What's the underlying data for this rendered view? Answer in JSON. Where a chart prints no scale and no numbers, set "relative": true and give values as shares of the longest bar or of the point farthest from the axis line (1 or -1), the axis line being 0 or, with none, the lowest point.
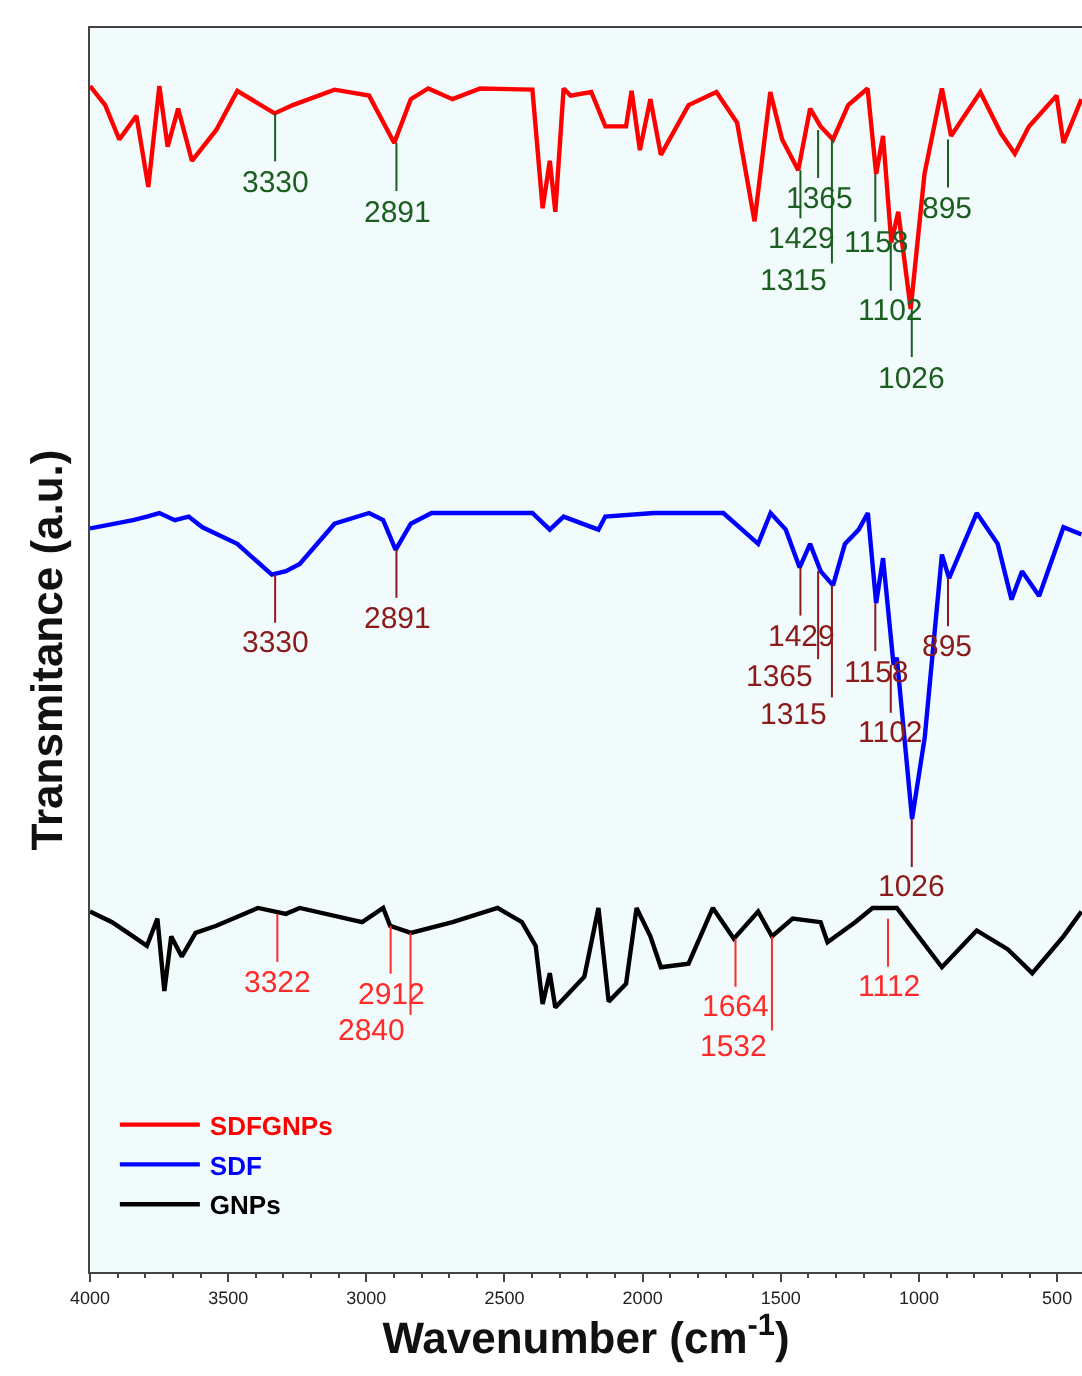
{
  "chart_data": {
    "type": "line",
    "relative": true,
    "xlabel": "Wavenumber (cm$^{-1}$)",
    "ylabel": "Transmitance (a.u.)",
    "xlim": [
      4000,
      410
    ],
    "xticks": [
      4000,
      3500,
      3000,
      2500,
      2000,
      1500,
      1000,
      500
    ],
    "grid": false,
    "legend": "bottom left",
    "tick_labels": "x",
    "marker": "none",
    "line_style": "solid",
    "series": [
      {
        "name": "SDFGNPs",
        "color": "#ff0000",
        "x": [
          4000,
          3945,
          3894,
          3832,
          3789,
          3749,
          3719,
          3681,
          3631,
          3543,
          3467,
          3332,
          3266,
          3115,
          2990,
          2899,
          2839,
          2776,
          2688,
          2588,
          2399,
          2362,
          2336,
          2316,
          2286,
          2261,
          2186,
          2135,
          2060,
          2040,
          2010,
          1972,
          1934,
          1834,
          1733,
          1658,
          1595,
          1538,
          1495,
          1437,
          1394,
          1356,
          1311,
          1256,
          1186,
          1155,
          1130,
          1100,
          1075,
          1030,
          980,
          917,
          884,
          778,
          703,
          653,
          602,
          502,
          477,
          412
        ],
        "values": [
          1.0,
          0.984,
          0.955,
          0.975,
          0.915,
          1.0,
          0.949,
          0.981,
          0.937,
          0.963,
          0.996,
          0.977,
          0.984,
          0.997,
          0.992,
          0.952,
          0.989,
          0.998,
          0.989,
          0.998,
          0.997,
          0.897,
          0.937,
          0.894,
          0.998,
          0.992,
          0.995,
          0.966,
          0.966,
          0.996,
          0.946,
          0.989,
          0.942,
          0.984,
          0.995,
          0.969,
          0.886,
          0.995,
          0.955,
          0.929,
          0.981,
          0.966,
          0.955,
          0.984,
          0.998,
          0.926,
          0.958,
          0.868,
          0.894,
          0.812,
          0.926,
          0.998,
          0.958,
          0.995,
          0.96,
          0.943,
          0.966,
          0.992,
          0.952,
          0.989
        ]
      },
      {
        "name": "SDF",
        "color": "#0000ff",
        "x": [
          4000,
          3844,
          3794,
          3749,
          3693,
          3643,
          3593,
          3467,
          3342,
          3291,
          3241,
          3115,
          2990,
          2939,
          2894,
          2839,
          2764,
          2399,
          2336,
          2286,
          2160,
          2135,
          1959,
          1708,
          1582,
          1537,
          1482,
          1432,
          1394,
          1356,
          1311,
          1268,
          1218,
          1185,
          1155,
          1130,
          1092,
          1080,
          1025,
          979,
          917,
          891,
          791,
          715,
          665,
          627,
          565,
          477,
          412
        ],
        "values": [
          0.627,
          0.634,
          0.637,
          0.64,
          0.634,
          0.637,
          0.628,
          0.614,
          0.588,
          0.591,
          0.597,
          0.631,
          0.64,
          0.634,
          0.609,
          0.631,
          0.64,
          0.64,
          0.626,
          0.637,
          0.626,
          0.637,
          0.64,
          0.64,
          0.614,
          0.64,
          0.626,
          0.594,
          0.614,
          0.591,
          0.579,
          0.614,
          0.626,
          0.64,
          0.564,
          0.602,
          0.512,
          0.518,
          0.382,
          0.451,
          0.605,
          0.585,
          0.64,
          0.614,
          0.567,
          0.591,
          0.57,
          0.628,
          0.622
        ]
      },
      {
        "name": "GNPs",
        "color": "#000000",
        "x": [
          4000,
          3920,
          3844,
          3794,
          3756,
          3731,
          3706,
          3668,
          3618,
          3543,
          3392,
          3291,
          3241,
          3015,
          2939,
          2914,
          2839,
          2688,
          2525,
          2437,
          2387,
          2362,
          2336,
          2316,
          2211,
          2160,
          2123,
          2060,
          2022,
          1972,
          1934,
          1834,
          1746,
          1670,
          1582,
          1532,
          1457,
          1356,
          1331,
          1231,
          1168,
          1080,
          917,
          791,
          678,
          590,
          477,
          412
        ],
        "values": [
          0.304,
          0.295,
          0.283,
          0.275,
          0.298,
          0.237,
          0.283,
          0.266,
          0.286,
          0.292,
          0.307,
          0.302,
          0.307,
          0.295,
          0.307,
          0.292,
          0.286,
          0.295,
          0.307,
          0.295,
          0.275,
          0.226,
          0.252,
          0.223,
          0.249,
          0.307,
          0.228,
          0.243,
          0.307,
          0.283,
          0.257,
          0.26,
          0.307,
          0.281,
          0.304,
          0.283,
          0.298,
          0.295,
          0.278,
          0.295,
          0.307,
          0.307,
          0.257,
          0.288,
          0.272,
          0.252,
          0.283,
          0.304
        ]
      }
    ],
    "annotations": [
      {
        "text": "3330",
        "x": 3330,
        "y": 0.977
      },
      {
        "text": "2891",
        "x": 2891,
        "y": 0.952
      },
      {
        "text": "1429",
        "x": 1429,
        "y": 0.929
      },
      {
        "text": "1365",
        "x": 1365,
        "y": 0.963
      },
      {
        "text": "1315",
        "x": 1315,
        "y": 0.955
      },
      {
        "text": "1158",
        "x": 1158,
        "y": 0.926
      },
      {
        "text": "1102",
        "x": 1102,
        "y": 0.868
      },
      {
        "text": "1026",
        "x": 1026,
        "y": 0.812
      },
      {
        "text": "895",
        "x": 895,
        "y": 0.955
      },
      {
        "text": "3330",
        "x": 3330,
        "y": 0.588
      },
      {
        "text": "2891",
        "x": 2891,
        "y": 0.609
      },
      {
        "text": "1429",
        "x": 1429,
        "y": 0.594
      },
      {
        "text": "1365",
        "x": 1365,
        "y": 0.591
      },
      {
        "text": "1315",
        "x": 1315,
        "y": 0.579
      },
      {
        "text": "1158",
        "x": 1158,
        "y": 0.564
      },
      {
        "text": "1102",
        "x": 1102,
        "y": 0.512
      },
      {
        "text": "1026",
        "x": 1026,
        "y": 0.382
      },
      {
        "text": "895",
        "x": 895,
        "y": 0.585
      },
      {
        "text": "3322",
        "x": 3322,
        "y": 0.302
      },
      {
        "text": "2912",
        "x": 2912,
        "y": 0.292
      },
      {
        "text": "2840",
        "x": 2840,
        "y": 0.286
      },
      {
        "text": "1664",
        "x": 1664,
        "y": 0.281
      },
      {
        "text": "1532",
        "x": 1532,
        "y": 0.283
      },
      {
        "text": "1112",
        "x": 1112,
        "y": 0.298
      }
    ]
  }
}
